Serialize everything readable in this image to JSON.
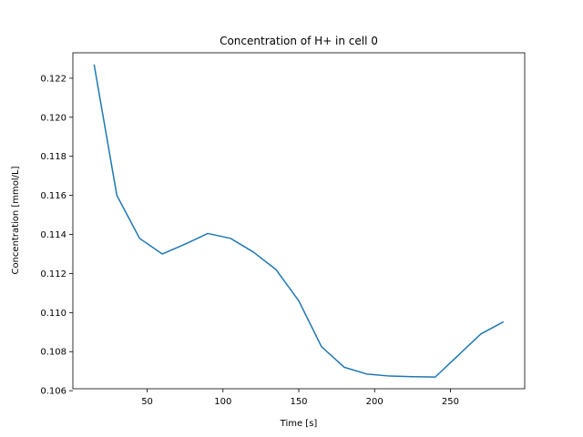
{
  "chart_data": {
    "type": "line",
    "title": "Concentration of H+ in cell 0",
    "xlabel": "Time [s]",
    "ylabel": "Concentration [mmol/L]",
    "xlim": [
      1,
      299
    ],
    "ylim": [
      0.1061,
      0.1233
    ],
    "xticks": [
      50,
      100,
      150,
      200,
      250
    ],
    "yticks": [
      0.106,
      0.108,
      0.11,
      0.112,
      0.114,
      0.116,
      0.118,
      0.12,
      0.122
    ],
    "xtick_labels": [
      "50",
      "100",
      "150",
      "200",
      "250"
    ],
    "ytick_labels": [
      "0.106",
      "0.108",
      "0.110",
      "0.112",
      "0.114",
      "0.116",
      "0.118",
      "0.120",
      "0.122"
    ],
    "grid": false,
    "series": [
      {
        "color": "#1f77b4",
        "x": [
          15,
          30,
          45,
          60,
          75,
          90,
          105,
          120,
          135,
          150,
          165,
          180,
          195,
          210,
          225,
          240,
          255,
          270,
          285
        ],
        "y": [
          0.1227,
          0.116,
          0.1138,
          0.113,
          0.1135,
          0.11405,
          0.1138,
          0.1131,
          0.1122,
          0.1106,
          0.10825,
          0.1072,
          0.10685,
          0.10675,
          0.10672,
          0.1067,
          0.1078,
          0.1089,
          0.10953
        ]
      }
    ]
  }
}
